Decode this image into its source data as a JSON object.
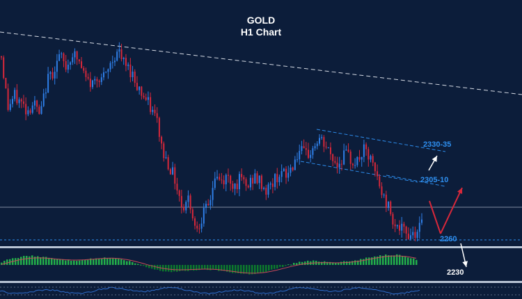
{
  "title": {
    "line1": "GOLD",
    "line2": "H1 Chart"
  },
  "levels": {
    "l2330": "2330-35",
    "l2305": "2305-10",
    "l2260": "2260",
    "l2230": "2230"
  },
  "colors": {
    "background": "#0c1d3a",
    "bull": "#2f7fe8",
    "bear": "#d8283a",
    "level_text": "#2e8ff0",
    "hist_pos": "#23b04a",
    "hist_neg": "#0d7a2c",
    "arrow_red": "#d8283a",
    "arrow_white": "#ffffff"
  },
  "chart_data": {
    "type": "candlestick",
    "symbol": "GOLD",
    "timeframe": "H1",
    "close_path": [
      2388,
      2352,
      2360,
      2356,
      2350,
      2356,
      2345,
      2370,
      2378,
      2388,
      2380,
      2390,
      2384,
      2372,
      2368,
      2375,
      2372,
      2384,
      2392,
      2382,
      2378,
      2368,
      2360,
      2352,
      2344,
      2320,
      2312,
      2300,
      2282,
      2290,
      2268,
      2276,
      2283,
      2304,
      2300,
      2304,
      2298,
      2302,
      2296,
      2304,
      2300,
      2294,
      2300,
      2307,
      2304,
      2312,
      2322,
      2318,
      2322,
      2330,
      2326,
      2318,
      2312,
      2320,
      2316,
      2314,
      2322,
      2316,
      2304,
      2290,
      2282,
      2270,
      2266,
      2264,
      2266,
      2270
    ],
    "levels": [
      2330,
      2305,
      2260,
      2230
    ],
    "oscillators": [
      "histogram",
      "line"
    ]
  }
}
